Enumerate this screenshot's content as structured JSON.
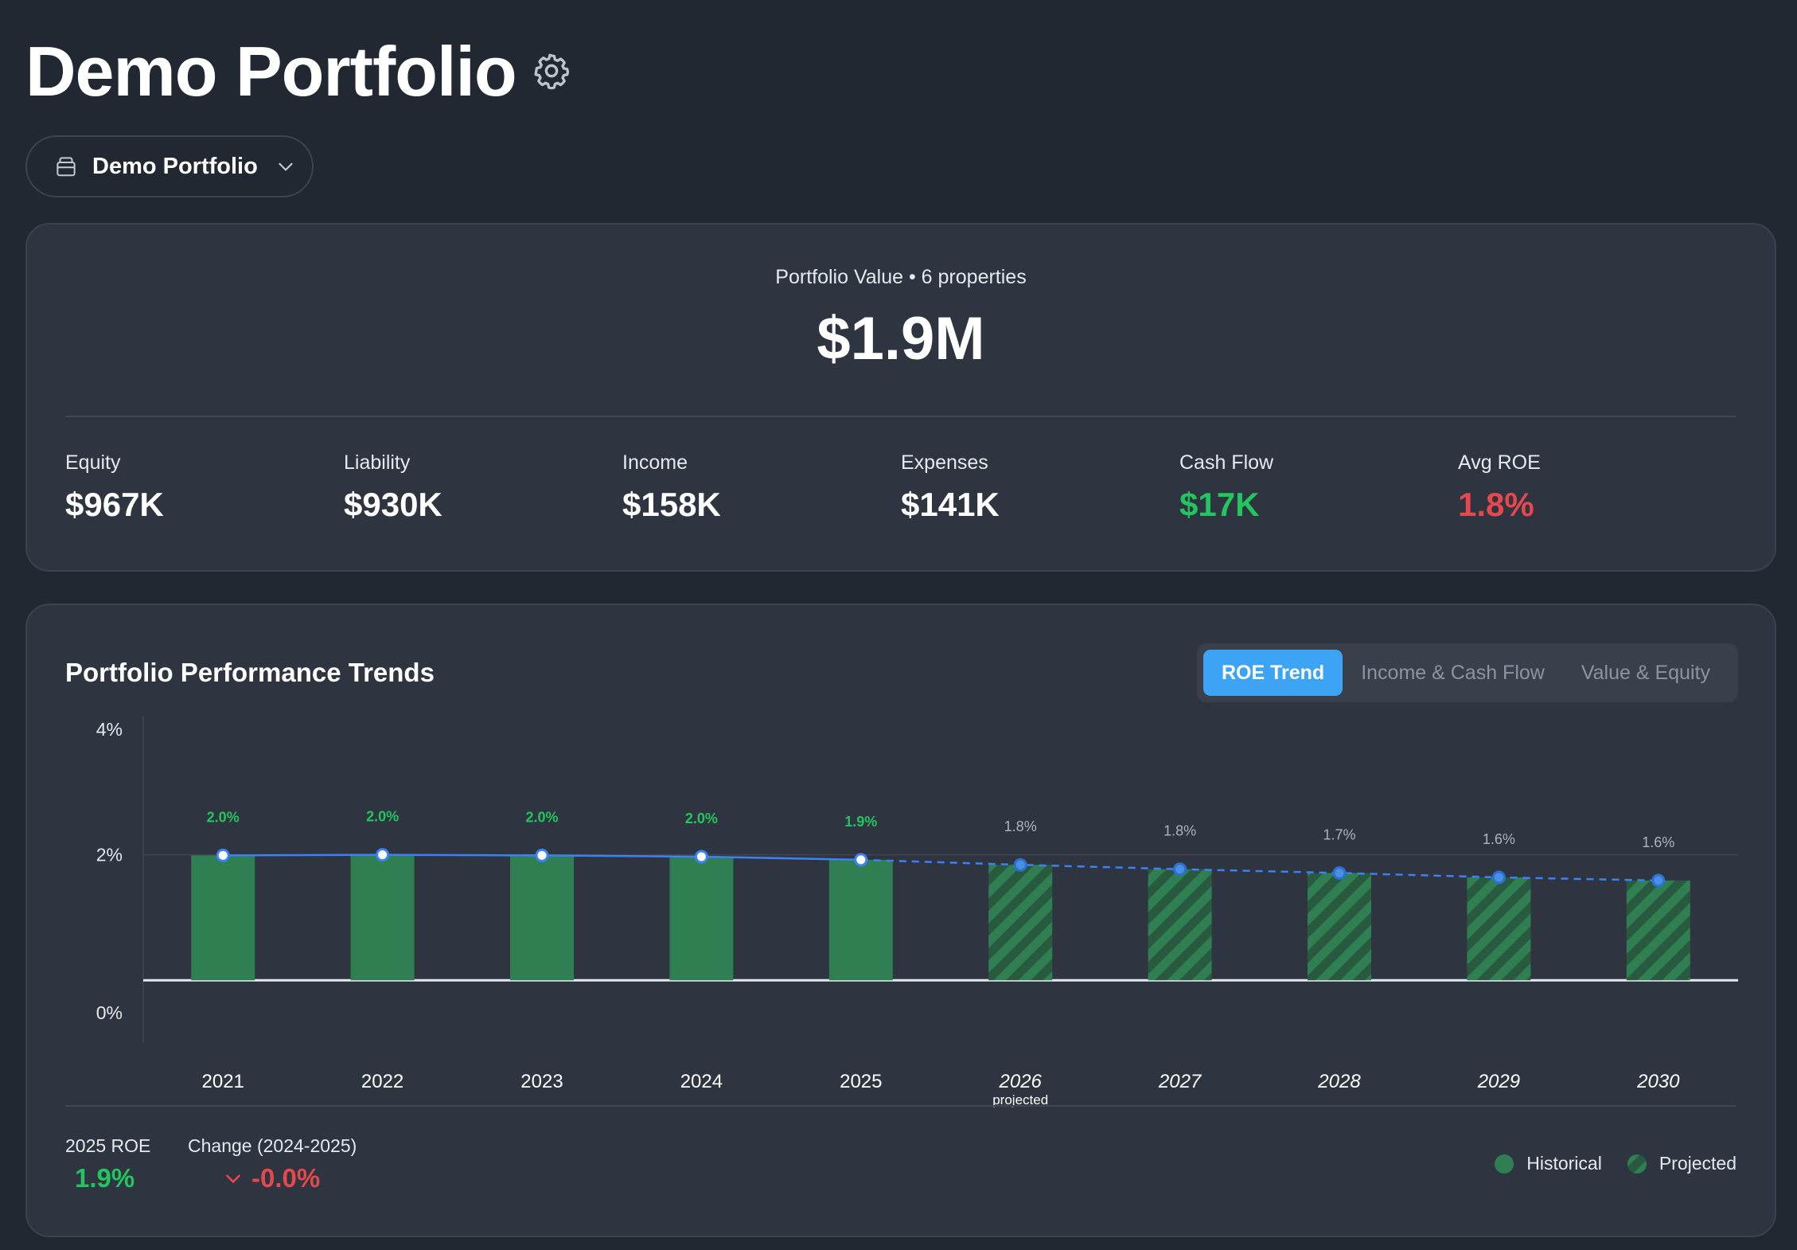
{
  "header": {
    "title": "Demo Portfolio",
    "portfolio_selector": "Demo Portfolio"
  },
  "summary": {
    "subtitle": "Portfolio Value • 6 properties",
    "value": "$1.9M",
    "stats": [
      {
        "label": "Equity",
        "value": "$967K",
        "tone": "default"
      },
      {
        "label": "Liability",
        "value": "$930K",
        "tone": "default"
      },
      {
        "label": "Income",
        "value": "$158K",
        "tone": "default"
      },
      {
        "label": "Expenses",
        "value": "$141K",
        "tone": "default"
      },
      {
        "label": "Cash Flow",
        "value": "$17K",
        "tone": "positive"
      },
      {
        "label": "Avg ROE",
        "value": "1.8%",
        "tone": "negative"
      }
    ]
  },
  "trends": {
    "title": "Portfolio Performance Trends",
    "tabs": [
      {
        "label": "ROE Trend",
        "active": true
      },
      {
        "label": "Income & Cash Flow",
        "active": false
      },
      {
        "label": "Value & Equity",
        "active": false
      }
    ],
    "projected_note": "projected",
    "footer": {
      "roe_label": "2025 ROE",
      "roe_value": "1.9%",
      "change_label": "Change (2024-2025)",
      "change_value": "-0.0%"
    },
    "legend": {
      "historical": "Historical",
      "projected": "Projected"
    }
  },
  "colors": {
    "historical_bar": "#2f7f52",
    "projected_stripe": "#2f7f52",
    "line": "#3b82f6",
    "positive": "#22c55e",
    "negative": "#e5484d",
    "active_tab": "#3da4f5"
  },
  "chart_data": {
    "type": "bar",
    "categories": [
      "2021",
      "2022",
      "2023",
      "2024",
      "2025",
      "2026",
      "2027",
      "2028",
      "2029",
      "2030"
    ],
    "values": [
      1.99,
      2.0,
      1.99,
      1.97,
      1.92,
      1.84,
      1.77,
      1.71,
      1.64,
      1.59
    ],
    "labels": [
      "2.0%",
      "2.0%",
      "2.0%",
      "2.0%",
      "1.9%",
      "1.8%",
      "1.8%",
      "1.7%",
      "1.6%",
      "1.6%"
    ],
    "projected": [
      false,
      false,
      false,
      false,
      false,
      true,
      true,
      true,
      true,
      true
    ],
    "overlay_line": true,
    "y_ticks": [
      "4%",
      "2%",
      "0%"
    ],
    "ylim": [
      -1,
      4
    ],
    "grid": "horizontal at 2%",
    "legend_position": "bottom-right"
  }
}
